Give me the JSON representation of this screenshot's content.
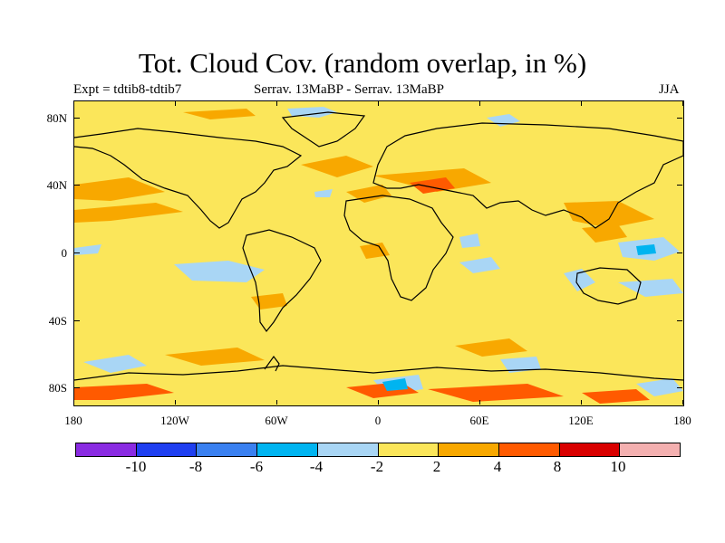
{
  "figure": {
    "title": "Tot. Cloud Cov. (random overlap, in %)",
    "left_label": "Expt = tdtib8-tdtib7",
    "center_label": "Serrav.   13MaBP - Serrav.   13MaBP",
    "right_label": "JJA"
  },
  "map": {
    "projection": "cylindrical equidistant",
    "lon_range": [
      -180,
      180
    ],
    "lat_range": [
      -90,
      90
    ],
    "background_color": "#fbe65a",
    "lat_ticks": [
      "80N",
      "40N",
      "0",
      "40S",
      "80S"
    ],
    "lon_ticks": [
      "180",
      "120W",
      "60W",
      "0",
      "60E",
      "120E",
      "180"
    ]
  },
  "colorbar": {
    "colors": [
      "#8a2be2",
      "#1f3ff0",
      "#3a80f0",
      "#00b4f0",
      "#a9d6f5",
      "#fbe65a",
      "#f8a800",
      "#ff5a00",
      "#d90000",
      "#f4b0b0"
    ],
    "labels": [
      "-10",
      "-8",
      "-6",
      "-4",
      "-2",
      "2",
      "4",
      "8",
      "10"
    ]
  }
}
